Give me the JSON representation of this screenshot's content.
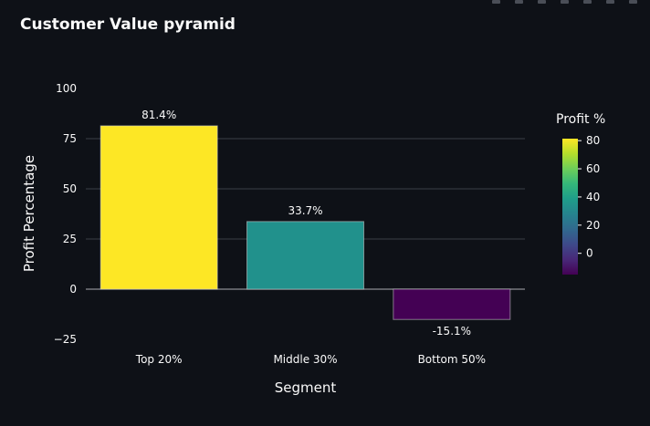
{
  "chart_data": {
    "type": "bar",
    "title": "Customer Value pyramid",
    "categories": [
      "Top 20%",
      "Middle 30%",
      "Bottom 50%"
    ],
    "values": [
      81.4,
      33.7,
      -15.1
    ],
    "data_labels": [
      "81.4%",
      "33.7%",
      "-15.1%"
    ],
    "xlabel": "Segment",
    "ylabel": "Profit Percentage",
    "ylim": [
      -25,
      100
    ],
    "yticks": [
      -25,
      0,
      25,
      50,
      75,
      100
    ],
    "ytick_labels": [
      "−25",
      "0",
      "25",
      "50",
      "75",
      "100"
    ],
    "grid": true,
    "colorscale": "viridis",
    "colors": [
      "#fde725",
      "#21918c",
      "#440154"
    ],
    "colorbar": {
      "title": "Profit %",
      "range": [
        -15.1,
        81.4
      ],
      "ticks": [
        0,
        20,
        40,
        60,
        80
      ],
      "tick_labels": [
        "0",
        "20",
        "40",
        "60",
        "80"
      ]
    }
  },
  "toolbar": {
    "icons": [
      "camera-icon",
      "zoom-icon",
      "pan-icon",
      "zoom-in-icon",
      "zoom-out-icon",
      "autoscale-icon",
      "reset-icon"
    ]
  }
}
